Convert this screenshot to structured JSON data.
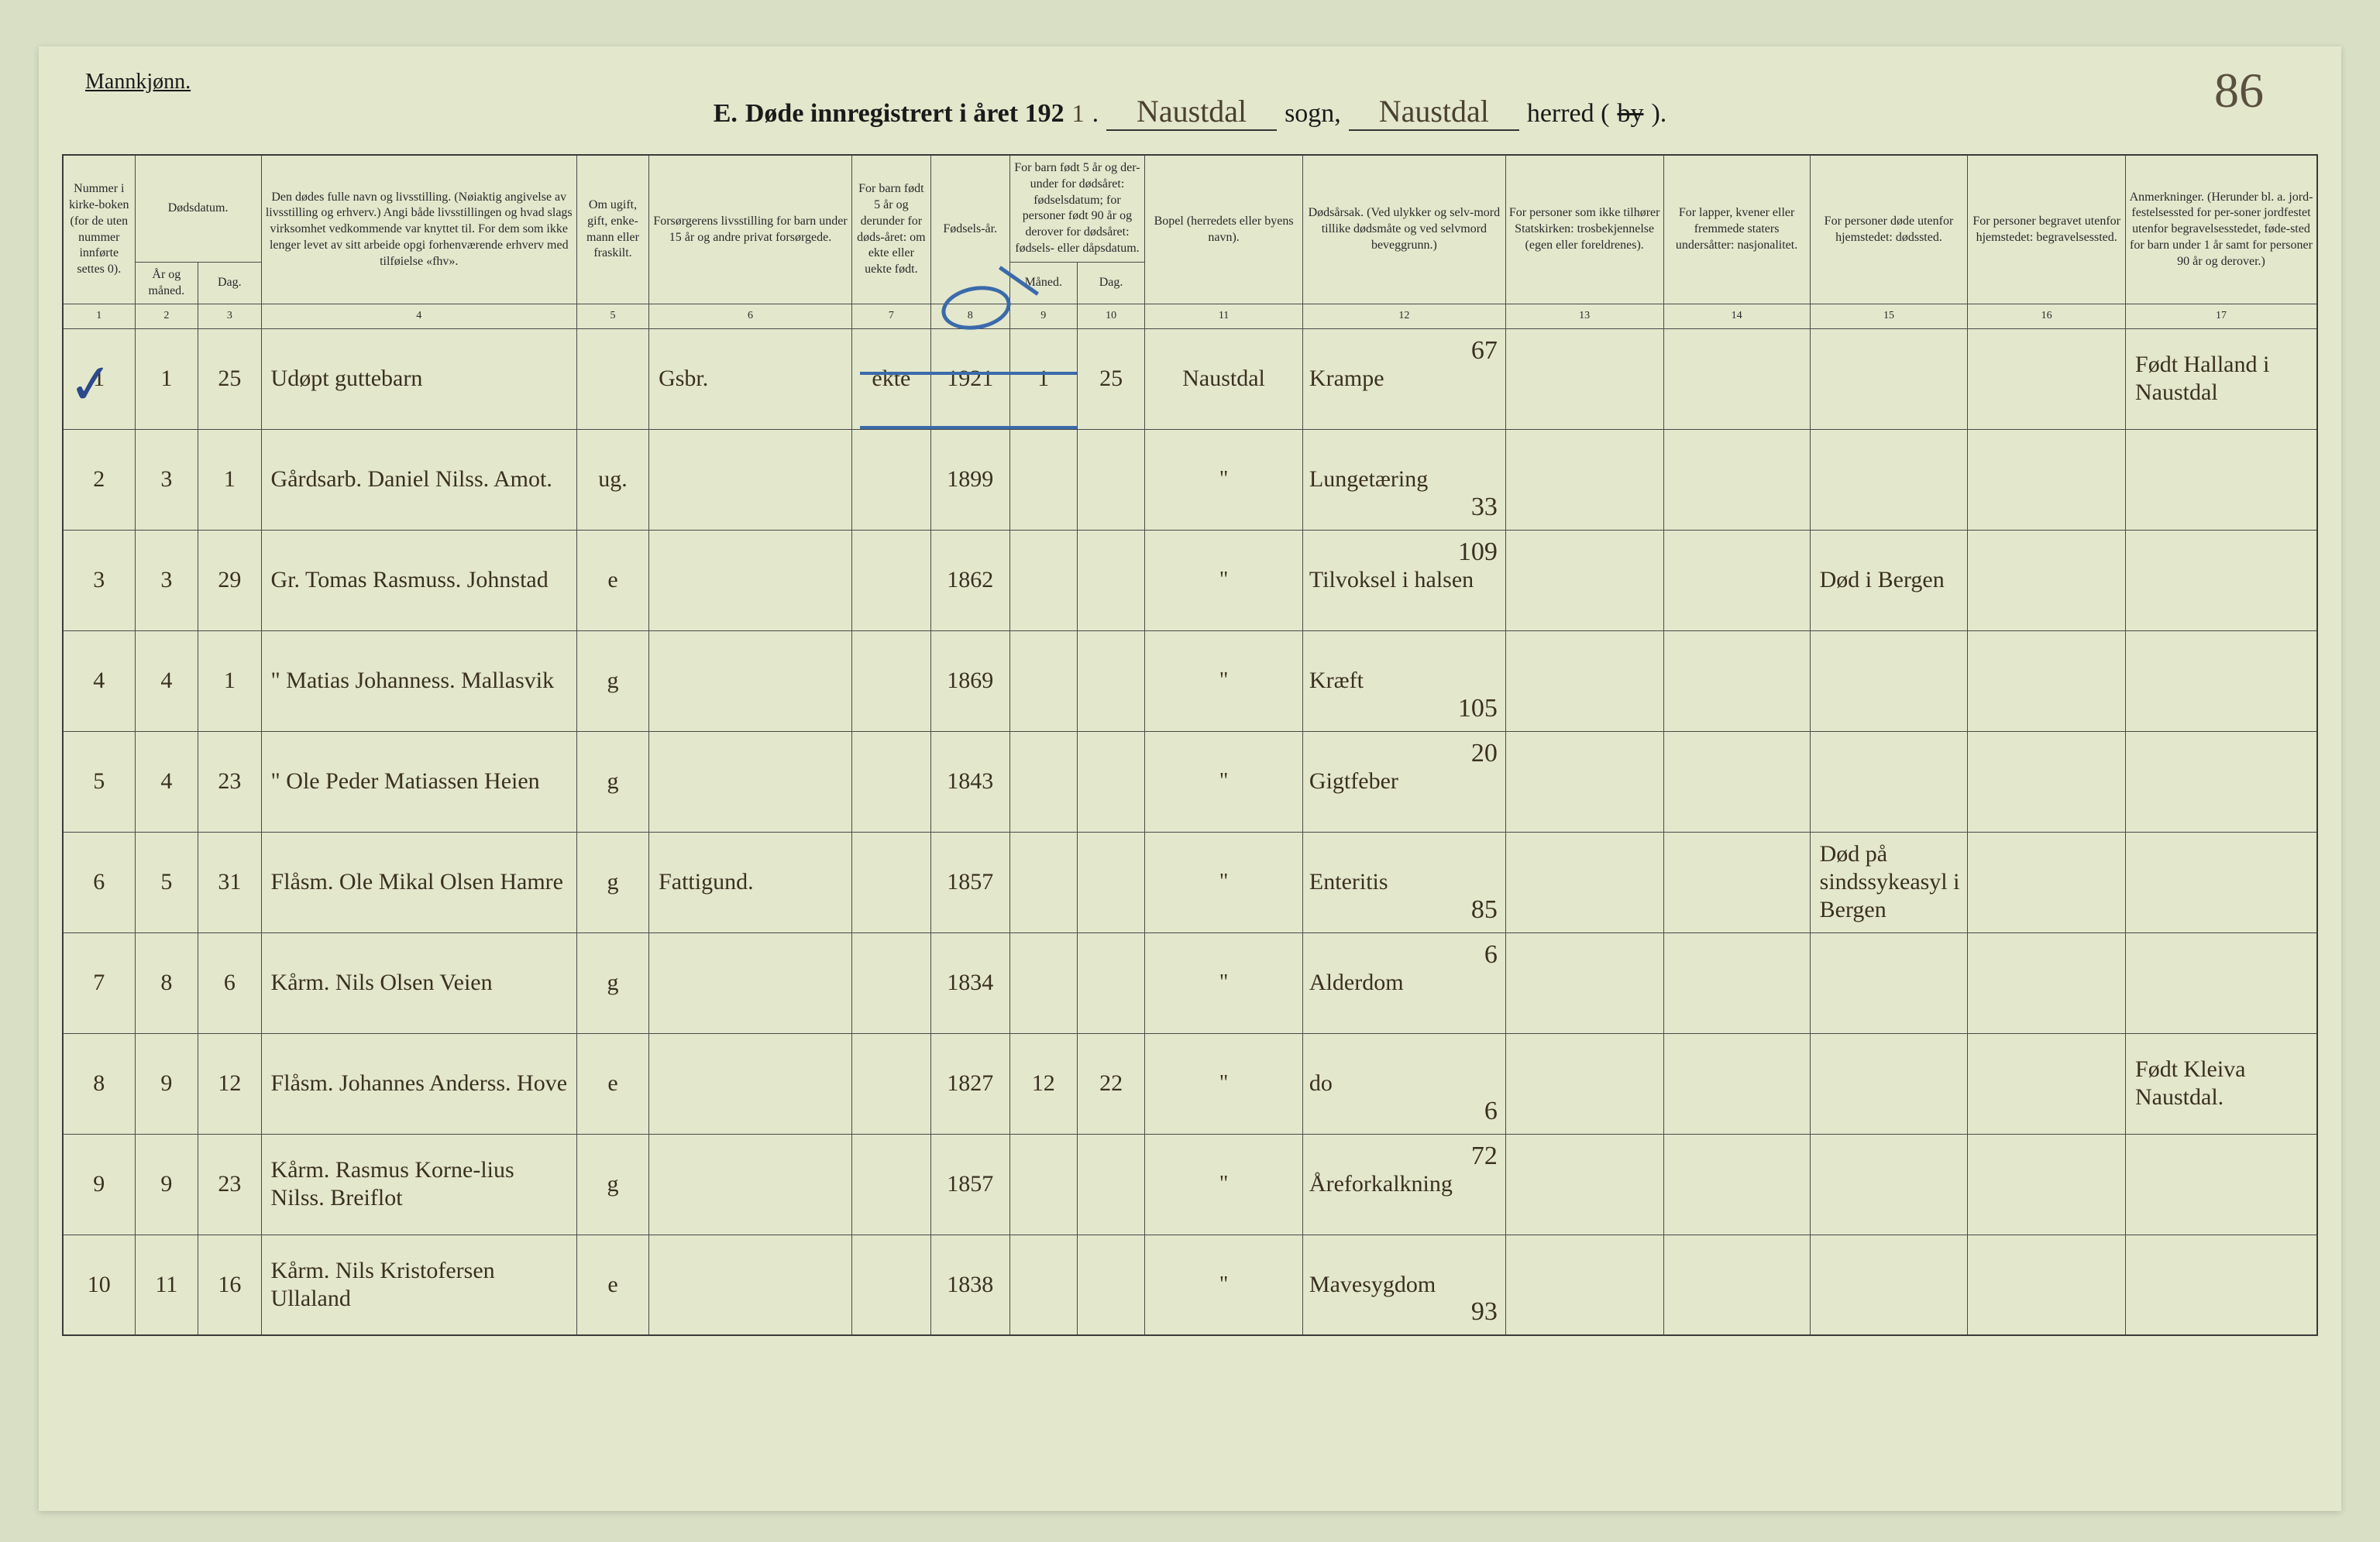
{
  "gender_label": "Mannkjønn.",
  "page_number": "86",
  "header": {
    "prefix": "E.",
    "title": "Døde innregistrert i året 192",
    "year_suffix": "1",
    "sogn_value": "Naustdal",
    "sogn_label": "sogn,",
    "herred_value": "Naustdal",
    "herred_label_pre": "herred (",
    "herred_label_strike": "by",
    "herred_label_post": ")."
  },
  "columns": {
    "c1": "Nummer i kirke-boken (for de uten nummer innførte settes 0).",
    "c2_group": "Dødsdatum.",
    "c2": "År og måned.",
    "c3": "Dag.",
    "c4": "Den dødes fulle navn og livsstilling. (Nøiaktig angivelse av livsstilling og erhverv.) Angi både livsstillingen og hvad slags virksomhet vedkommende var knyttet til. For dem som ikke lenger levet av sitt arbeide opgi forhenværende erhverv med tilføielse «fhv».",
    "c5": "Om ugift, gift, enke-mann eller fraskilt.",
    "c6": "Forsørgerens livsstilling for barn under 15 år og andre privat forsørgede.",
    "c7": "For barn født 5 år og derunder for døds-året: om ekte eller uekte født.",
    "c8": "Fødsels-år.",
    "c9_group": "For barn født 5 år og der-under for dødsåret: fødselsdatum; for personer født 90 år og derover for dødsåret: fødsels- eller dåpsdatum.",
    "c9": "Måned.",
    "c10": "Dag.",
    "c11": "Bopel (herredets eller byens navn).",
    "c12": "Dødsårsak. (Ved ulykker og selv-mord tillike dødsmåte og ved selvmord beveggrunn.)",
    "c13": "For personer som ikke tilhører Statskirken: trosbekjennelse (egen eller foreldrenes).",
    "c14": "For lapper, kvener eller fremmede staters undersåtter: nasjonalitet.",
    "c15": "For personer døde utenfor hjemstedet: dødssted.",
    "c16": "For personer begravet utenfor hjemstedet: begravelsessted.",
    "c17": "Anmerkninger. (Herunder bl. a. jord-festelsessted for per-soner jordfestet utenfor begravelsesstedet, føde-sted for barn under 1 år samt for personer 90 år og derover.)"
  },
  "colnums": [
    "1",
    "2",
    "3",
    "4",
    "5",
    "6",
    "7",
    "8",
    "9",
    "10",
    "11",
    "12",
    "13",
    "14",
    "15",
    "16",
    "17"
  ],
  "rows": [
    {
      "n": "1",
      "am": "1",
      "d": "25",
      "name": "Udøpt guttebarn",
      "ms": "",
      "prov": "Gsbr.",
      "ekte": "ekte",
      "yr": "1921",
      "bm": "1",
      "bd": "25",
      "bopel": "Naustdal",
      "cause": "Krampe",
      "cnum": "67",
      "c15": "",
      "c17": "Født Halland i Naustdal"
    },
    {
      "n": "2",
      "am": "3",
      "d": "1",
      "name": "Gårdsarb. Daniel Nilss. Amot.",
      "ms": "ug.",
      "prov": "",
      "ekte": "",
      "yr": "1899",
      "bm": "",
      "bd": "",
      "bopel": "\"",
      "cause": "Lungetæring",
      "cnum": "33",
      "c15": "",
      "c17": ""
    },
    {
      "n": "3",
      "am": "3",
      "d": "29",
      "name": "Gr. Tomas Rasmuss. Johnstad",
      "ms": "e",
      "prov": "",
      "ekte": "",
      "yr": "1862",
      "bm": "",
      "bd": "",
      "bopel": "\"",
      "cause": "Tilvoksel i halsen",
      "cnum": "109",
      "c15": "Død i Bergen",
      "c17": ""
    },
    {
      "n": "4",
      "am": "4",
      "d": "1",
      "name": "\" Matias Johanness. Mallasvik",
      "ms": "g",
      "prov": "",
      "ekte": "",
      "yr": "1869",
      "bm": "",
      "bd": "",
      "bopel": "\"",
      "cause": "Kræft",
      "cnum": "105",
      "c15": "",
      "c17": ""
    },
    {
      "n": "5",
      "am": "4",
      "d": "23",
      "name": "\" Ole Peder Matiassen Heien",
      "ms": "g",
      "prov": "",
      "ekte": "",
      "yr": "1843",
      "bm": "",
      "bd": "",
      "bopel": "\"",
      "cause": "Gigtfeber",
      "cnum": "20",
      "c15": "",
      "c17": ""
    },
    {
      "n": "6",
      "am": "5",
      "d": "31",
      "name": "Flåsm. Ole Mikal Olsen Hamre",
      "ms": "g",
      "prov": "Fattigund.",
      "ekte": "",
      "yr": "1857",
      "bm": "",
      "bd": "",
      "bopel": "\"",
      "cause": "Enteritis",
      "cnum": "85",
      "c15": "Død på sindssykeasyl i Bergen",
      "c17": ""
    },
    {
      "n": "7",
      "am": "8",
      "d": "6",
      "name": "Kårm. Nils Olsen Veien",
      "ms": "g",
      "prov": "",
      "ekte": "",
      "yr": "1834",
      "bm": "",
      "bd": "",
      "bopel": "\"",
      "cause": "Alderdom",
      "cnum": "6",
      "c15": "",
      "c17": ""
    },
    {
      "n": "8",
      "am": "9",
      "d": "12",
      "name": "Flåsm. Johannes Anderss. Hove",
      "ms": "e",
      "prov": "",
      "ekte": "",
      "yr": "1827",
      "bm": "12",
      "bd": "22",
      "bopel": "\"",
      "cause": "do",
      "cnum": "6",
      "c15": "",
      "c17": "Født Kleiva Naustdal."
    },
    {
      "n": "9",
      "am": "9",
      "d": "23",
      "name": "Kårm. Rasmus Korne-lius Nilss. Breiflot",
      "ms": "g",
      "prov": "",
      "ekte": "",
      "yr": "1857",
      "bm": "",
      "bd": "",
      "bopel": "\"",
      "cause": "Åreforkalkning",
      "cnum": "72",
      "c15": "",
      "c17": ""
    },
    {
      "n": "10",
      "am": "11",
      "d": "16",
      "name": "Kårm. Nils Kristofersen Ullaland",
      "ms": "e",
      "prov": "",
      "ekte": "",
      "yr": "1838",
      "bm": "",
      "bd": "",
      "bopel": "\"",
      "cause": "Mavesygdom",
      "cnum": "93",
      "c15": "",
      "c17": ""
    }
  ],
  "colwidths": [
    "3.2%",
    "2.8%",
    "2.8%",
    "14%",
    "3.2%",
    "9%",
    "3.5%",
    "3.5%",
    "3%",
    "3%",
    "7%",
    "9%",
    "7%",
    "6.5%",
    "7%",
    "7%",
    "8.5%"
  ],
  "style": {
    "background_color": "#e3e7cc",
    "border_color": "#3a3a3a",
    "ink_color": "#3a3020",
    "blue_pencil": "#3a6aaa",
    "header_fontsize": 34,
    "th_fontsize": 16,
    "td_fontsize": 30
  }
}
